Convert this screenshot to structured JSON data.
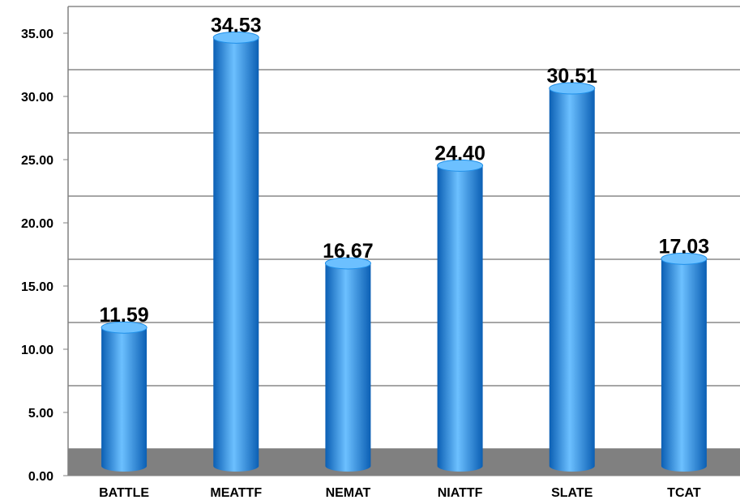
{
  "chart_data": {
    "type": "bar",
    "style": "3d-cylinder",
    "categories": [
      "BATTLE",
      "MEATTF",
      "NEMAT",
      "NIATTF",
      "SLATE",
      "TCAT"
    ],
    "values": [
      11.59,
      34.53,
      16.67,
      24.4,
      30.51,
      17.03
    ],
    "data_labels": [
      "11.59",
      "34.53",
      "16.67",
      "24.40",
      "30.51",
      "17.03"
    ],
    "title": "",
    "xlabel": "",
    "ylabel": "",
    "ylim": [
      0,
      35
    ],
    "yticks": [
      0,
      5,
      10,
      15,
      20,
      25,
      30,
      35
    ],
    "ytick_labels": [
      "0.00",
      "5.00",
      "10.00",
      "15.00",
      "20.00",
      "25.00",
      "30.00",
      "35.00"
    ],
    "grid": true,
    "legend": "none",
    "colors": {
      "bar": "#1f8fe8",
      "bar_dark": "#0b5fb4",
      "bar_light": "#6cc0ff",
      "floor": "#808080",
      "grid": "#a6a6a6",
      "axis": "#808080"
    }
  }
}
